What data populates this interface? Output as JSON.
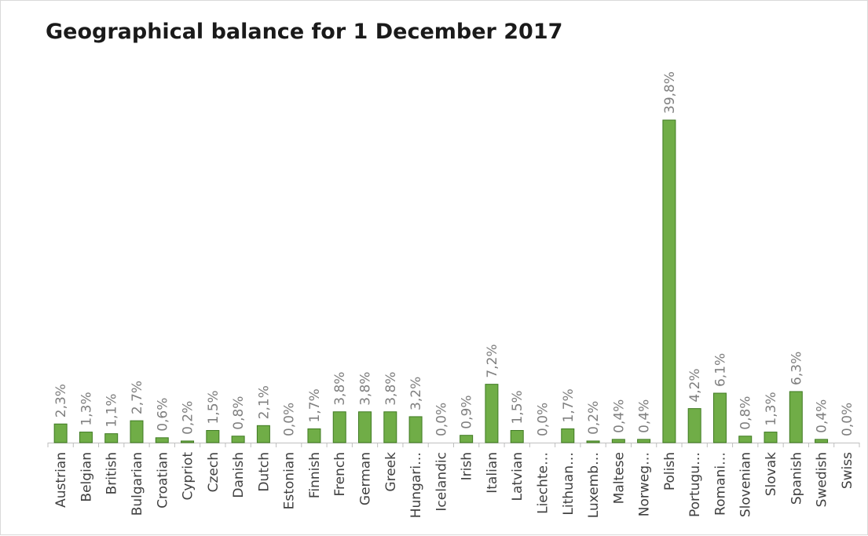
{
  "chart_data": {
    "type": "bar",
    "title": "Geographical balance for 1 December 2017",
    "categories": [
      "Austrian",
      "Belgian",
      "British",
      "Bulgarian",
      "Croatian",
      "Cypriot",
      "Czech",
      "Danish",
      "Dutch",
      "Estonian",
      "Finnish",
      "French",
      "German",
      "Greek",
      "Hungari…",
      "Icelandic",
      "Irish",
      "Italian",
      "Latvian",
      "Liechte…",
      "Lithuan…",
      "Luxemb…",
      "Maltese",
      "Norweg…",
      "Polish",
      "Portugu…",
      "Romani…",
      "Slovenian",
      "Slovak",
      "Spanish",
      "Swedish",
      "Swiss"
    ],
    "values": [
      2.3,
      1.3,
      1.1,
      2.7,
      0.6,
      0.2,
      1.5,
      0.8,
      2.1,
      0.0,
      1.7,
      3.8,
      3.8,
      3.8,
      3.2,
      0.0,
      0.9,
      7.2,
      1.5,
      0.0,
      1.7,
      0.2,
      0.4,
      0.4,
      39.8,
      4.2,
      6.1,
      0.8,
      1.3,
      6.3,
      0.4,
      0.0
    ],
    "data_labels": [
      "2,3%",
      "1,3%",
      "1,1%",
      "2,7%",
      "0,6%",
      "0,2%",
      "1,5%",
      "0,8%",
      "2,1%",
      "0,0%",
      "1,7%",
      "3,8%",
      "3,8%",
      "3,8%",
      "3,2%",
      "0,0%",
      "0,9%",
      "7,2%",
      "1,5%",
      "0,0%",
      "1,7%",
      "0,2%",
      "0,4%",
      "0,4%",
      "39,8%",
      "4,2%",
      "6,1%",
      "0,8%",
      "1,3%",
      "6,3%",
      "0,4%",
      "0,0%"
    ],
    "xlabel": "",
    "ylabel": "",
    "ylim": [
      0,
      40
    ],
    "grid": false,
    "legend": "none",
    "colors": {
      "bar_fill": "#70ad47",
      "bar_stroke": "#3f7a22"
    }
  }
}
